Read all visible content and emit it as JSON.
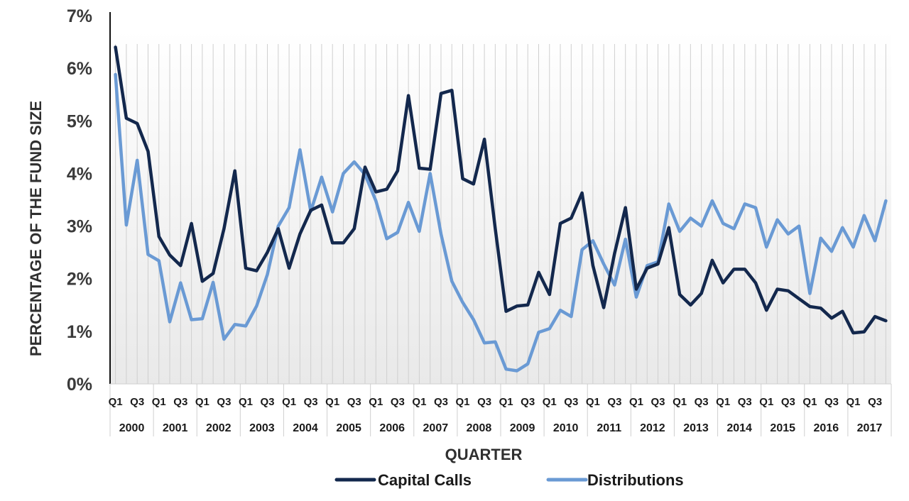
{
  "chart_data": {
    "type": "line",
    "title": "",
    "xlabel": "QUARTER",
    "ylabel": "PERCENTAGE OF THE FUND SIZE",
    "ylim": [
      0,
      7
    ],
    "y_ticks": [
      "0%",
      "1%",
      "2%",
      "3%",
      "4%",
      "5%",
      "6%",
      "7%"
    ],
    "grid": "vertical lines per quarter",
    "legend_position": "bottom",
    "years": [
      "2000",
      "2001",
      "2002",
      "2003",
      "2004",
      "2005",
      "2006",
      "2007",
      "2008",
      "2009",
      "2010",
      "2011",
      "2012",
      "2013",
      "2014",
      "2015",
      "2016",
      "2017"
    ],
    "quarter_tick_labels": [
      "Q1",
      "Q3"
    ],
    "x": [
      "2000Q1",
      "2000Q2",
      "2000Q3",
      "2000Q4",
      "2001Q1",
      "2001Q2",
      "2001Q3",
      "2001Q4",
      "2002Q1",
      "2002Q2",
      "2002Q3",
      "2002Q4",
      "2003Q1",
      "2003Q2",
      "2003Q3",
      "2003Q4",
      "2004Q1",
      "2004Q2",
      "2004Q3",
      "2004Q4",
      "2005Q1",
      "2005Q2",
      "2005Q3",
      "2005Q4",
      "2006Q1",
      "2006Q2",
      "2006Q3",
      "2006Q4",
      "2007Q1",
      "2007Q2",
      "2007Q3",
      "2007Q4",
      "2008Q1",
      "2008Q2",
      "2008Q3",
      "2008Q4",
      "2009Q1",
      "2009Q2",
      "2009Q3",
      "2009Q4",
      "2010Q1",
      "2010Q2",
      "2010Q3",
      "2010Q4",
      "2011Q1",
      "2011Q2",
      "2011Q3",
      "2011Q4",
      "2012Q1",
      "2012Q2",
      "2012Q3",
      "2012Q4",
      "2013Q1",
      "2013Q2",
      "2013Q3",
      "2013Q4",
      "2014Q1",
      "2014Q2",
      "2014Q3",
      "2014Q4",
      "2015Q1",
      "2015Q2",
      "2015Q3",
      "2015Q4",
      "2016Q1",
      "2016Q2",
      "2016Q3",
      "2016Q4",
      "2017Q1",
      "2017Q2",
      "2017Q3",
      "2017Q4"
    ],
    "series": [
      {
        "name": "Capital Calls",
        "color": "#13284d",
        "values": [
          6.4,
          5.05,
          4.95,
          4.42,
          2.8,
          2.45,
          2.25,
          3.05,
          1.95,
          2.1,
          2.95,
          4.05,
          2.2,
          2.15,
          2.5,
          2.95,
          2.2,
          2.85,
          3.3,
          3.4,
          2.68,
          2.68,
          2.95,
          4.12,
          3.65,
          3.7,
          4.05,
          5.48,
          4.1,
          4.08,
          5.52,
          5.58,
          3.9,
          3.8,
          4.65,
          2.95,
          1.38,
          1.48,
          1.5,
          2.12,
          1.7,
          3.05,
          3.15,
          3.63,
          2.25,
          1.45,
          2.48,
          3.35,
          1.8,
          2.2,
          2.28,
          2.97,
          1.7,
          1.5,
          1.72,
          2.35,
          1.92,
          2.18,
          2.18,
          1.92,
          1.4,
          1.8,
          1.77,
          1.62,
          1.47,
          1.44,
          1.25,
          1.38,
          0.97,
          0.99,
          1.28,
          1.2
        ]
      },
      {
        "name": "Distributions",
        "color": "#6a9ad4",
        "values": [
          5.88,
          3.02,
          4.25,
          2.46,
          2.34,
          1.18,
          1.92,
          1.22,
          1.24,
          1.93,
          0.85,
          1.13,
          1.1,
          1.48,
          2.08,
          3.0,
          3.35,
          4.45,
          3.28,
          3.93,
          3.27,
          4.0,
          4.22,
          3.98,
          3.48,
          2.76,
          2.88,
          3.45,
          2.9,
          4.0,
          2.85,
          1.95,
          1.55,
          1.22,
          0.78,
          0.8,
          0.28,
          0.25,
          0.38,
          0.98,
          1.05,
          1.4,
          1.28,
          2.55,
          2.72,
          2.28,
          1.88,
          2.75,
          1.65,
          2.25,
          2.32,
          3.42,
          2.9,
          3.15,
          3.0,
          3.48,
          3.05,
          2.95,
          3.42,
          3.35,
          2.6,
          3.12,
          2.85,
          3.0,
          1.72,
          2.77,
          2.52,
          2.97,
          2.6,
          3.2,
          2.72,
          3.48
        ]
      }
    ]
  }
}
